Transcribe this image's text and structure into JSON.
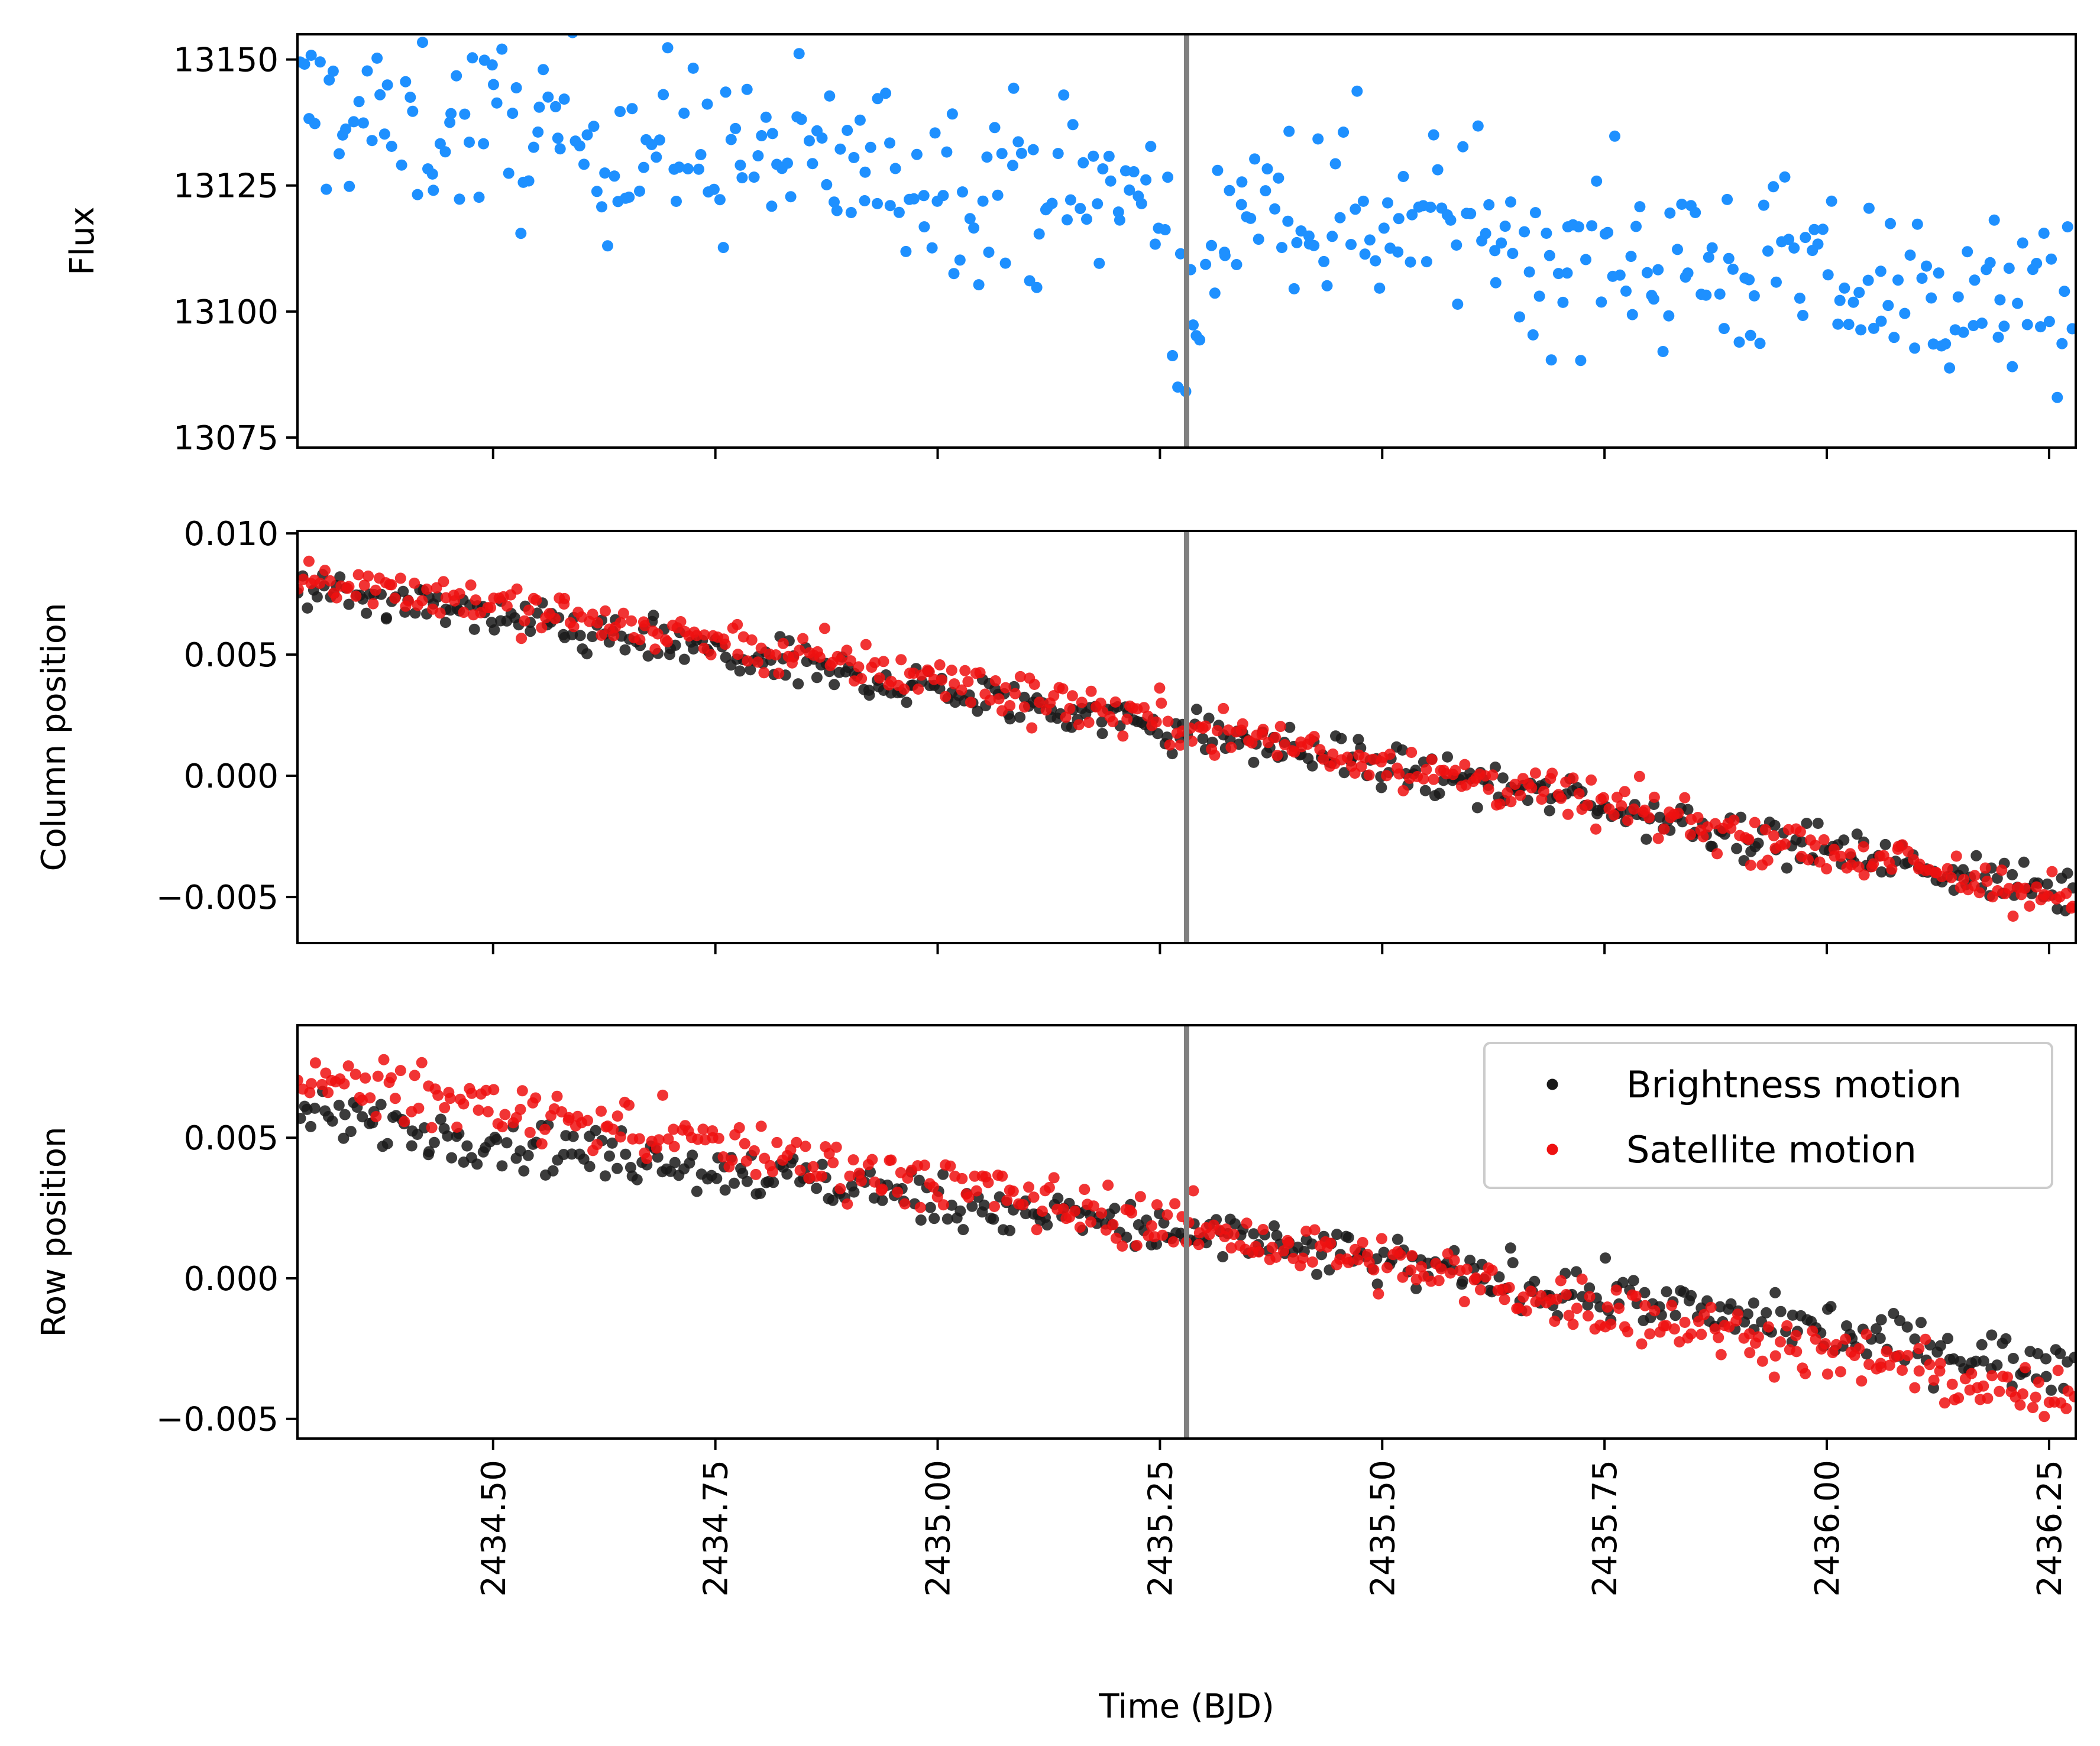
{
  "chart_data": {
    "type": "scatter",
    "xlabel": "Time (BJD)",
    "xlim": [
      2434.28,
      2436.28
    ],
    "x_ticks": [
      2434.5,
      2434.75,
      2435.0,
      2435.25,
      2435.5,
      2435.75,
      2436.0,
      2436.25
    ],
    "x_tick_labels": [
      "2434.50",
      "2434.75",
      "2435.00",
      "2435.25",
      "2435.50",
      "2435.75",
      "2436.00",
      "2436.25"
    ],
    "event_line_x": 2435.28,
    "colors": {
      "flux": "#1e90ff",
      "brightness": "#1a1a1a",
      "satellite": "#ee1111",
      "event_line": "#808080"
    },
    "panels": [
      {
        "id": "flux",
        "ylabel": "Flux",
        "ylim": [
          13073,
          13155
        ],
        "y_ticks": [
          13075,
          13100,
          13125,
          13150
        ],
        "y_tick_labels": [
          "13075",
          "13100",
          "13125",
          "13150"
        ],
        "series": [
          {
            "key": "flux",
            "n": 420,
            "start": 13140,
            "end": 13100,
            "noise": 9.0,
            "dip": {
              "center": 2435.285,
              "width": 0.03,
              "depth": 30
            }
          }
        ]
      },
      {
        "id": "column",
        "ylabel": "Column position",
        "ylim": [
          -0.0069,
          0.0101
        ],
        "y_ticks": [
          -0.005,
          0.0,
          0.005,
          0.01
        ],
        "y_tick_labels": [
          "−0.005",
          "0.000",
          "0.005",
          "0.010"
        ],
        "series": [
          {
            "key": "brightness",
            "n": 420,
            "start": 0.0077,
            "end": -0.005,
            "noise": 0.00045
          },
          {
            "key": "satellite",
            "n": 420,
            "start": 0.0084,
            "end": -0.0052,
            "noise": 0.0005
          }
        ]
      },
      {
        "id": "row",
        "ylabel": "Row position",
        "ylim": [
          -0.0057,
          0.009
        ],
        "y_ticks": [
          -0.005,
          0.0,
          0.005
        ],
        "y_tick_labels": [
          "−0.005",
          "0.000",
          "0.005"
        ],
        "series": [
          {
            "key": "brightness",
            "n": 420,
            "start": 0.0058,
            "end": -0.0033,
            "noise": 0.00045
          },
          {
            "key": "satellite",
            "n": 420,
            "start": 0.0072,
            "end": -0.0045,
            "noise": 0.0005
          }
        ],
        "legend": {
          "position": "upper right",
          "entries": [
            {
              "key": "brightness",
              "label": "Brightness motion"
            },
            {
              "key": "satellite",
              "label": "Satellite motion"
            }
          ]
        }
      }
    ]
  }
}
